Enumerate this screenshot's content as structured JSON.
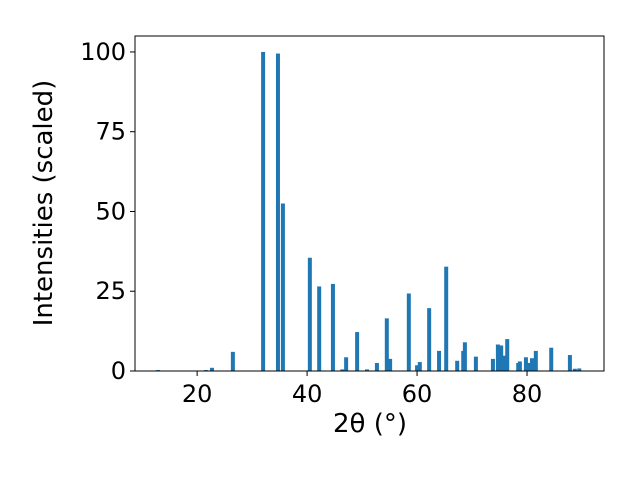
{
  "chart_data": {
    "type": "bar",
    "xlabel": "2θ (°)",
    "ylabel": "Intensities (scaled)",
    "color": "#1f77b4",
    "x": [
      12.9,
      21.6,
      22.7,
      26.5,
      32.0,
      34.7,
      35.6,
      40.5,
      42.2,
      44.7,
      46.4,
      47.1,
      49.1,
      50.9,
      52.7,
      54.5,
      55.1,
      58.5,
      60.0,
      60.5,
      62.2,
      64.0,
      65.3,
      67.3,
      68.4,
      68.7,
      70.7,
      73.8,
      74.7,
      75.3,
      75.8,
      76.4,
      78.4,
      78.7,
      79.8,
      80.4,
      80.9,
      81.6,
      84.4,
      87.8,
      88.7,
      89.5
    ],
    "values": [
      0.3,
      0.3,
      1,
      6,
      100,
      99.5,
      52.5,
      35.5,
      26.5,
      27.3,
      0.5,
      4.3,
      12.2,
      0.5,
      2.5,
      16.5,
      3.8,
      24.3,
      1.8,
      2.8,
      19.7,
      6.3,
      32.7,
      3.2,
      6.3,
      9,
      4.5,
      3.8,
      8.3,
      8,
      4.8,
      10,
      2.5,
      3,
      4.3,
      2.5,
      4,
      6.3,
      7.3,
      5,
      0.7,
      0.8
    ],
    "xlim": [
      8.7,
      94
    ],
    "ylim": [
      0,
      105
    ],
    "xticks": [
      20,
      40,
      60,
      80
    ],
    "yticks": [
      0,
      25,
      50,
      75,
      100
    ]
  }
}
